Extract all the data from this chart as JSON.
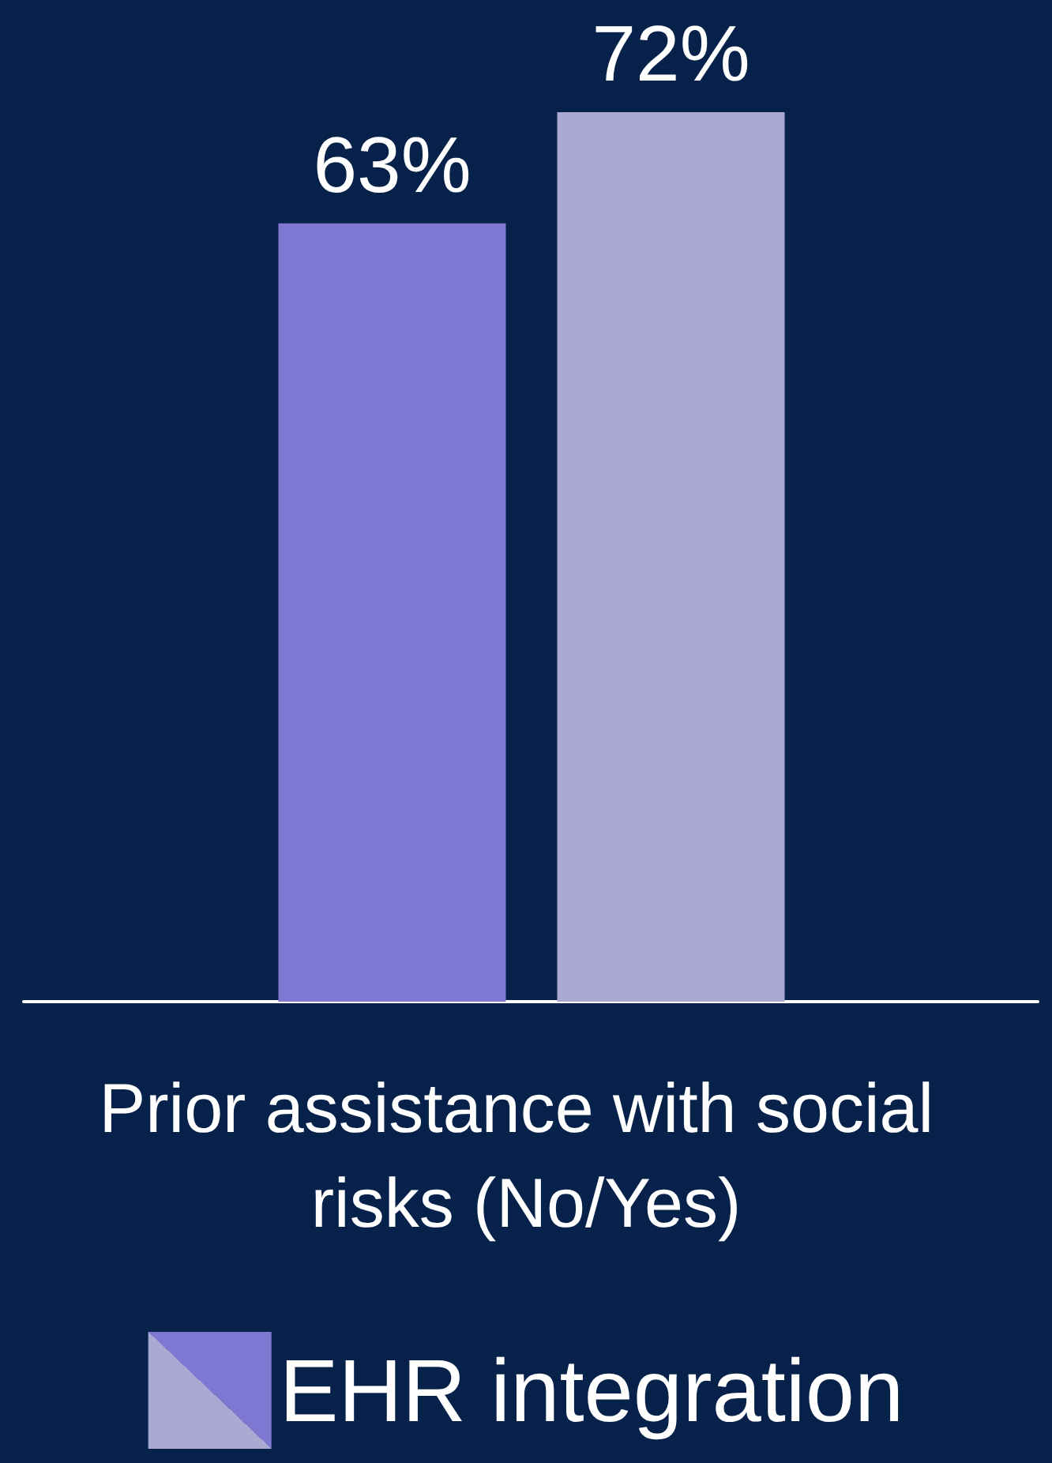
{
  "chart_data": {
    "type": "bar",
    "xlabel": "Prior assistance with social risks (No/Yes)",
    "categories": [
      null,
      null
    ],
    "series": [
      {
        "name": "EHR integration",
        "colors": [
          "#7f78d2",
          "#aaa9d2"
        ],
        "values": [
          63,
          72
        ],
        "value_labels": [
          "63%",
          "72%"
        ]
      }
    ],
    "legend": "bottom"
  }
}
